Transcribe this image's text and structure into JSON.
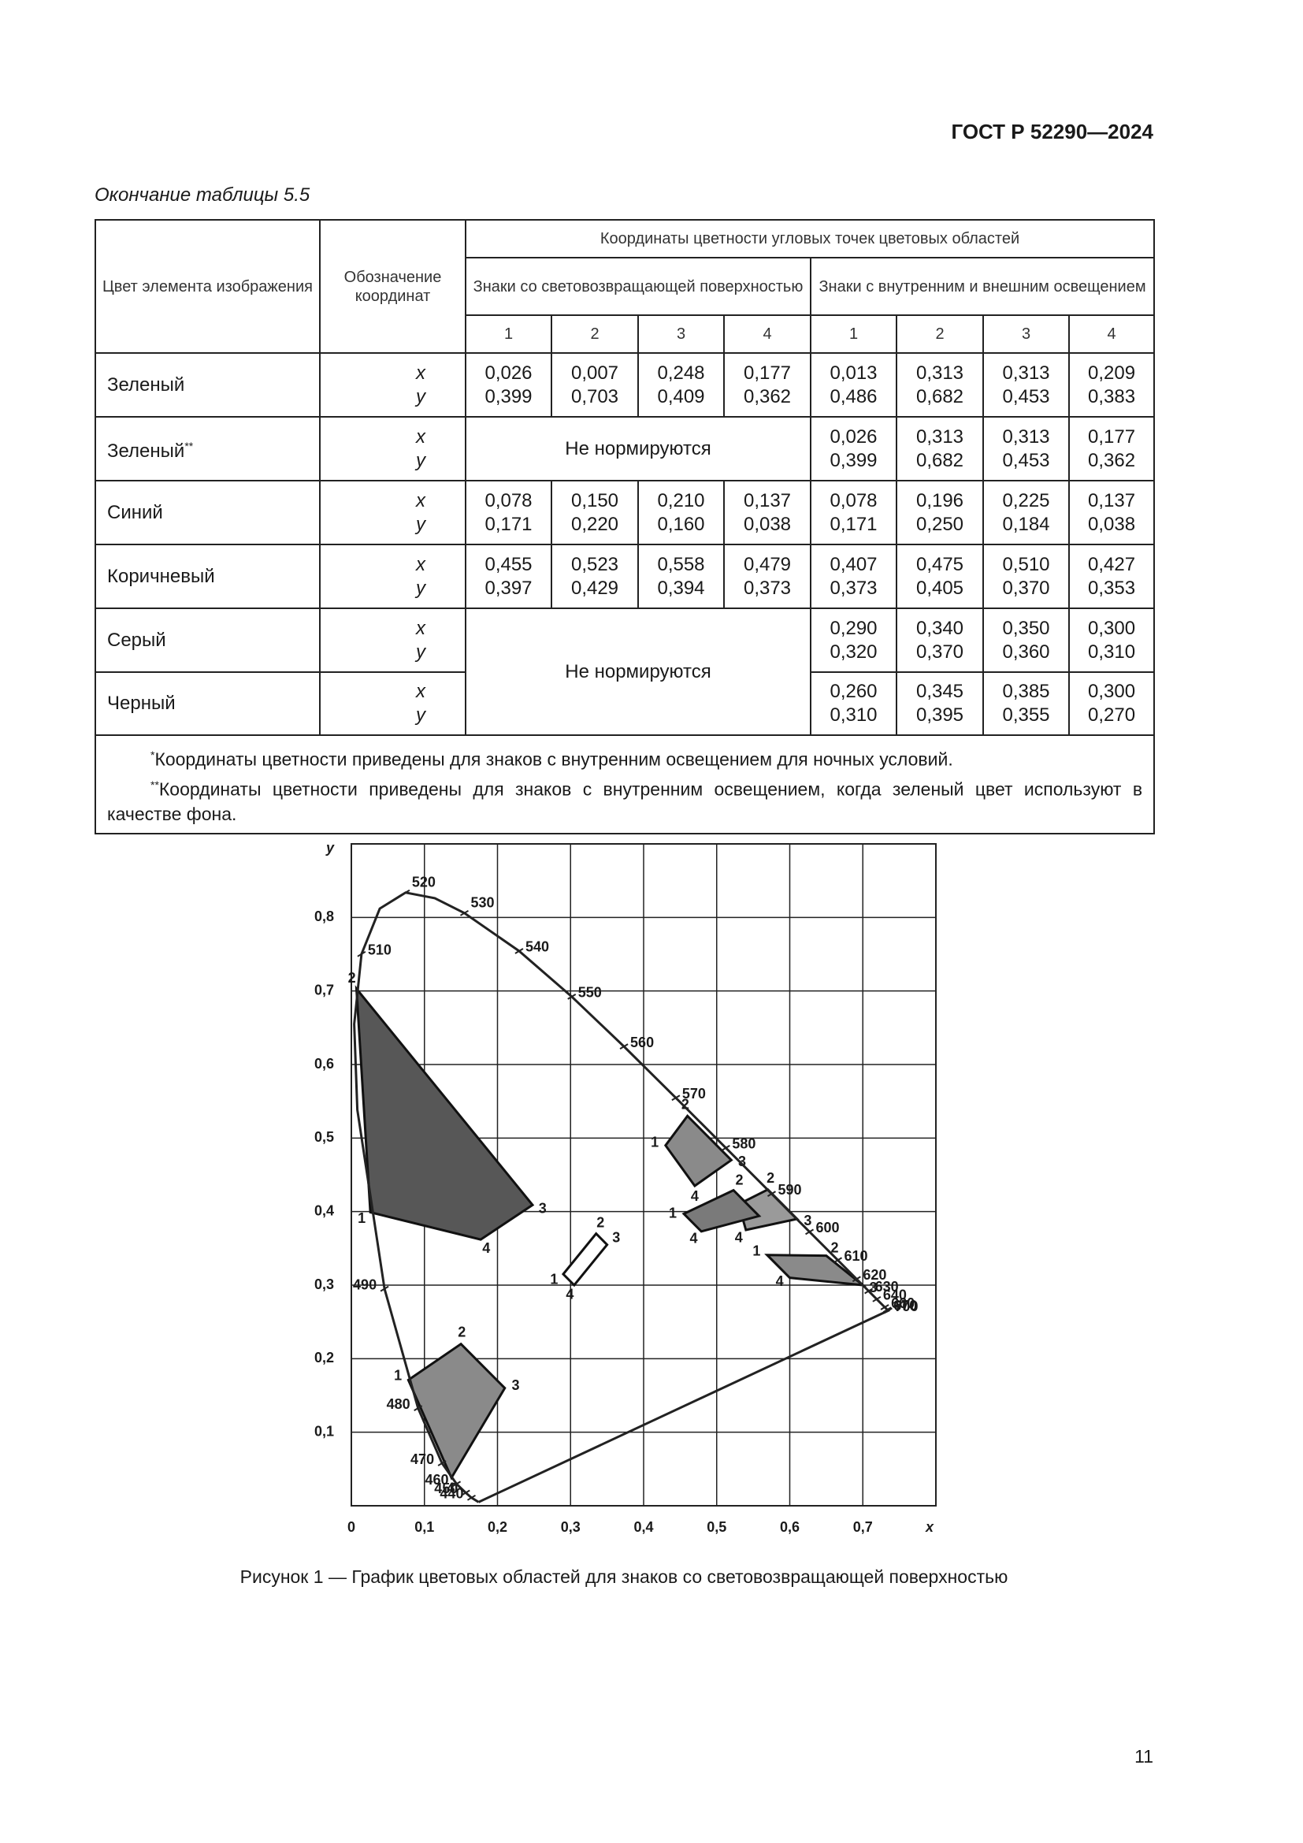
{
  "header": {
    "standard": "ГОСТ Р 52290—2024",
    "table_caption": "Окончание таблицы 5.5"
  },
  "table": {
    "headers": {
      "color": "Цвет элемента изображения",
      "coords": "Обозначение координат",
      "group": "Координаты цветности угловых точек цветовых областей",
      "retro": "Знаки со световозвращающей поверхностью",
      "internal": "Знаки с внутренним и внешним освещением",
      "retro_points": [
        "1",
        "2",
        "3",
        "4"
      ],
      "internal_points": [
        "1",
        "2",
        "3",
        "4"
      ]
    },
    "rows": [
      {
        "name": "Зеленый",
        "coords": [
          "x",
          "y"
        ],
        "retro": [
          [
            "0,026",
            "0,399"
          ],
          [
            "0,007",
            "0,703"
          ],
          [
            "0,248",
            "0,409"
          ],
          [
            "0,177",
            "0,362"
          ]
        ],
        "internal": [
          [
            "0,013",
            "0,486"
          ],
          [
            "0,313",
            "0,682"
          ],
          [
            "0,313",
            "0,453"
          ],
          [
            "0,209",
            "0,383"
          ]
        ]
      },
      {
        "name": "Зеленый",
        "mark": "**",
        "coords": [
          "x",
          "y"
        ],
        "retro": "Не нормируются",
        "internal": [
          [
            "0,026",
            "0,399"
          ],
          [
            "0,313",
            "0,682"
          ],
          [
            "0,313",
            "0,453"
          ],
          [
            "0,177",
            "0,362"
          ]
        ]
      },
      {
        "name": "Синий",
        "coords": [
          "x",
          "y"
        ],
        "retro": [
          [
            "0,078",
            "0,171"
          ],
          [
            "0,150",
            "0,220"
          ],
          [
            "0,210",
            "0,160"
          ],
          [
            "0,137",
            "0,038"
          ]
        ],
        "internal": [
          [
            "0,078",
            "0,171"
          ],
          [
            "0,196",
            "0,250"
          ],
          [
            "0,225",
            "0,184"
          ],
          [
            "0,137",
            "0,038"
          ]
        ]
      },
      {
        "name": "Коричневый",
        "coords": [
          "x",
          "y"
        ],
        "retro": [
          [
            "0,455",
            "0,397"
          ],
          [
            "0,523",
            "0,429"
          ],
          [
            "0,558",
            "0,394"
          ],
          [
            "0,479",
            "0,373"
          ]
        ],
        "internal": [
          [
            "0,407",
            "0,373"
          ],
          [
            "0,475",
            "0,405"
          ],
          [
            "0,510",
            "0,370"
          ],
          [
            "0,427",
            "0,353"
          ]
        ]
      },
      {
        "name": "Серый",
        "coords": [
          "x",
          "y"
        ],
        "retro": "Не нормируются",
        "internal": [
          [
            "0,290",
            "0,320"
          ],
          [
            "0,340",
            "0,370"
          ],
          [
            "0,350",
            "0,360"
          ],
          [
            "0,300",
            "0,310"
          ]
        ]
      },
      {
        "name": "Черный",
        "coords": [
          "x",
          "y"
        ],
        "internal": [
          [
            "0,260",
            "0,310"
          ],
          [
            "0,345",
            "0,395"
          ],
          [
            "0,385",
            "0,355"
          ],
          [
            "0,300",
            "0,270"
          ]
        ]
      }
    ],
    "notes": [
      {
        "mark": "*",
        "text": "Координаты цветности приведены для знаков с внутренним освещением для ночных условий."
      },
      {
        "mark": "**",
        "text": "Координаты цветности приведены для знаков с внутренним освещением, когда зеленый цвет используют в качестве фона."
      }
    ]
  },
  "figure": {
    "chart_data": {
      "type": "chromaticity",
      "x_label": "x",
      "y_label": "y",
      "xlim": [
        0,
        0.8
      ],
      "ylim": [
        0,
        0.9
      ],
      "xticks": [
        0,
        {
          "value": 0.1,
          "label": "0,1"
        },
        {
          "value": 0.2,
          "label": "0,2"
        },
        {
          "value": 0.3,
          "label": "0,3"
        },
        {
          "value": 0.4,
          "label": "0,4"
        },
        {
          "value": 0.5,
          "label": "0,5"
        },
        {
          "value": 0.6,
          "label": "0,6"
        },
        {
          "value": 0.7,
          "label": "0,7"
        }
      ],
      "yticks": [
        {
          "value": 0.1,
          "label": "0,1"
        },
        {
          "value": 0.2,
          "label": "0,2"
        },
        {
          "value": 0.3,
          "label": "0,3"
        },
        {
          "value": 0.4,
          "label": "0,4"
        },
        {
          "value": 0.5,
          "label": "0,5"
        },
        {
          "value": 0.6,
          "label": "0,6"
        },
        {
          "value": 0.7,
          "label": "0,7"
        },
        {
          "value": 0.8,
          "label": "0,8"
        }
      ],
      "grid": true,
      "locus": {
        "x": [
          0.1741,
          0.1644,
          0.1566,
          0.144,
          0.1241,
          0.0913,
          0.0454,
          0.0082,
          0.0039,
          0.0139,
          0.0389,
          0.0743,
          0.1142,
          0.1547,
          0.2296,
          0.3016,
          0.3731,
          0.4441,
          0.5125,
          0.5752,
          0.627,
          0.6658,
          0.6915,
          0.7079,
          0.719,
          0.73,
          0.7334,
          0.7347,
          0.1741
        ],
        "y": [
          0.005,
          0.0109,
          0.0177,
          0.0297,
          0.0578,
          0.1327,
          0.295,
          0.5384,
          0.6548,
          0.7502,
          0.812,
          0.8338,
          0.8262,
          0.8059,
          0.7543,
          0.6923,
          0.6245,
          0.5547,
          0.4866,
          0.4242,
          0.3725,
          0.334,
          0.3083,
          0.292,
          0.2809,
          0.27,
          0.2666,
          0.2653,
          0.005
        ],
        "labels": [
          null,
          "440",
          "450",
          "460",
          "470",
          "480",
          "490",
          null,
          null,
          "510",
          null,
          "520",
          null,
          "530",
          "540",
          "550",
          "560",
          "570",
          "580",
          "590",
          "600",
          "610",
          "620",
          "630",
          "640",
          "660",
          "670",
          "700",
          null
        ]
      },
      "regions": [
        {
          "color": "#575757",
          "x": [
            0.026,
            0.007,
            0.248,
            0.177
          ],
          "y": [
            0.399,
            0.703,
            0.409,
            0.362
          ],
          "labels": [
            "1",
            "2",
            "3",
            "4"
          ]
        },
        {
          "color": "#8a8a8a",
          "x": [
            0.078,
            0.15,
            0.21,
            0.137
          ],
          "y": [
            0.171,
            0.22,
            0.16,
            0.038
          ],
          "labels": [
            "1",
            "2",
            "3",
            "4"
          ]
        },
        {
          "color": "#ffffff",
          "x": [
            0.29,
            0.335,
            0.35,
            0.305
          ],
          "y": [
            0.315,
            0.37,
            0.355,
            0.3
          ],
          "labels": [
            "1",
            "2",
            "3",
            "4"
          ]
        },
        {
          "color": "#8a8a8a",
          "x": [
            0.43,
            0.46,
            0.52,
            0.47
          ],
          "y": [
            0.49,
            0.53,
            0.47,
            0.435
          ],
          "labels": [
            "1",
            "2",
            "3",
            "4"
          ]
        },
        {
          "color": "#9a9a9a",
          "x": [
            0.53,
            0.57,
            0.61,
            0.54
          ],
          "y": [
            0.41,
            0.43,
            0.39,
            0.375
          ],
          "labels": [
            null,
            "2",
            "3",
            "4"
          ]
        },
        {
          "color": "#7a7a7a",
          "x": [
            0.455,
            0.523,
            0.558,
            0.479
          ],
          "y": [
            0.397,
            0.429,
            0.394,
            0.373
          ],
          "labels": [
            "1",
            "2",
            null,
            "4"
          ]
        },
        {
          "color": "#8a8a8a",
          "x": [
            0.569,
            0.65,
            0.7,
            0.6
          ],
          "y": [
            0.341,
            0.34,
            0.3,
            0.31
          ],
          "labels": [
            "1",
            "2",
            "3",
            "4"
          ]
        }
      ]
    },
    "caption": "Рисунок 1 — График цветовых областей для знаков со световозвращающей поверхностью"
  },
  "page_number": "11"
}
